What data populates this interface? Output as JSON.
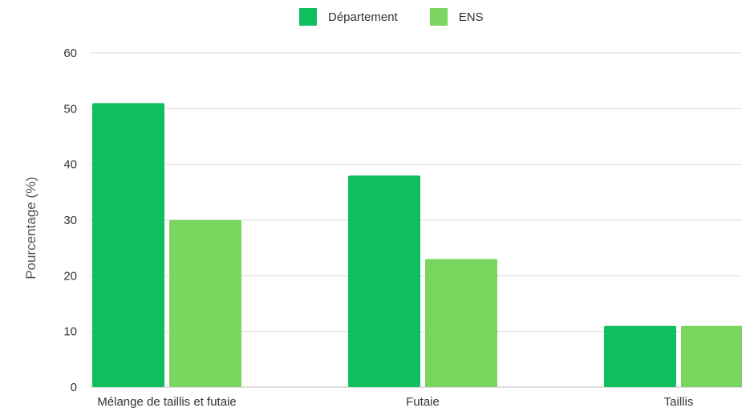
{
  "chart_data": {
    "type": "bar",
    "categories": [
      "Mélange de taillis et futaie",
      "Futaie",
      "Taillis"
    ],
    "series": [
      {
        "name": "Département",
        "color": "#0fbf5f",
        "values": [
          51,
          38,
          11
        ]
      },
      {
        "name": "ENS",
        "color": "#7ad65f",
        "values": [
          30,
          23,
          11
        ]
      }
    ],
    "xlabel": "",
    "ylabel": "Pourcentage (%)",
    "ylim": [
      0,
      60
    ],
    "yticks": [
      0,
      10,
      20,
      30,
      40,
      50,
      60
    ],
    "grid": true,
    "legend_position": "top-center"
  }
}
